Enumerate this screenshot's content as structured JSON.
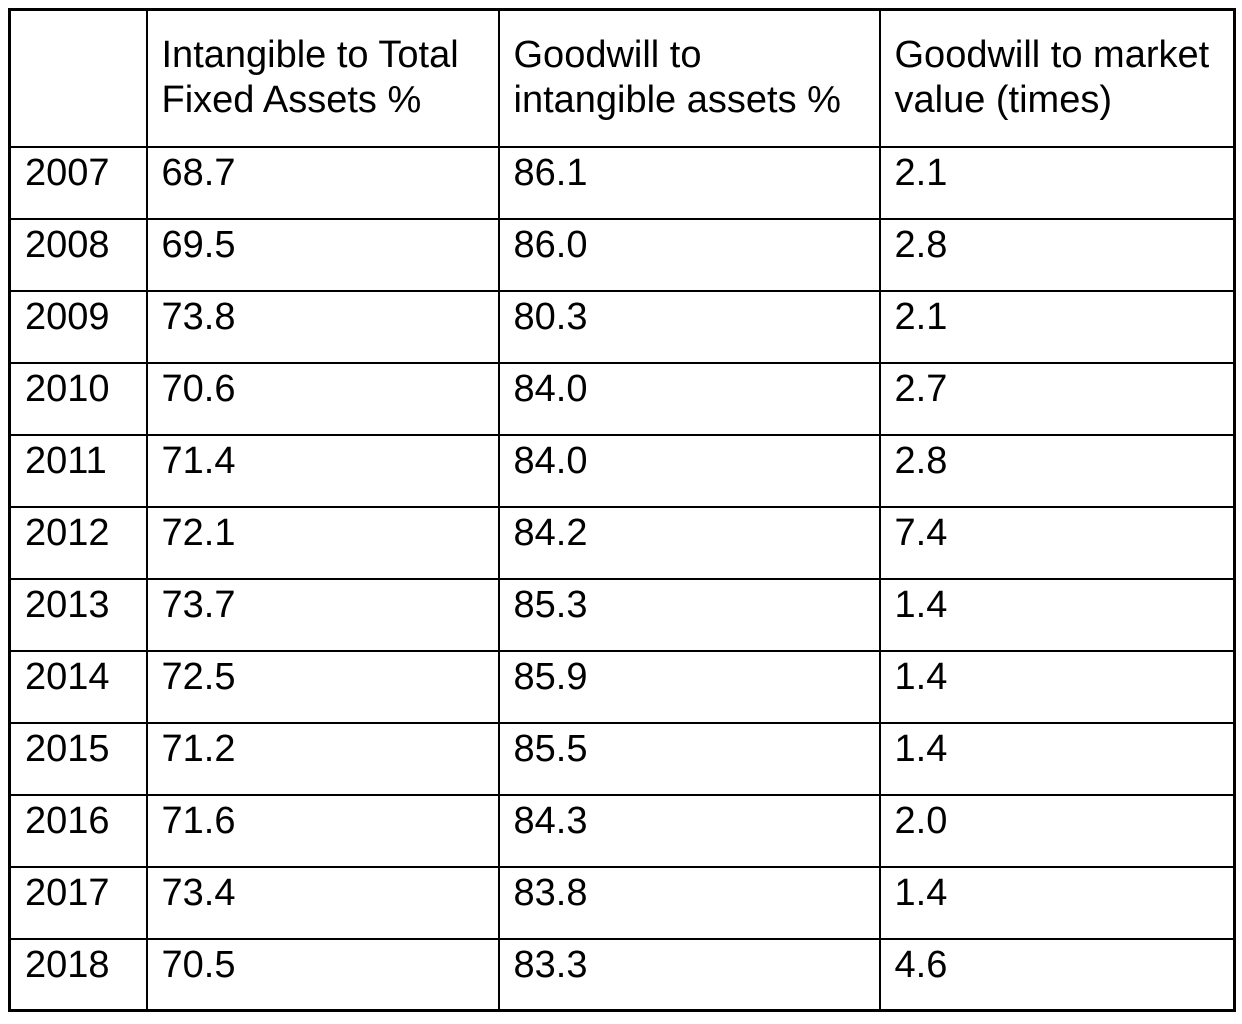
{
  "colors": {
    "background": "#ffffff",
    "border": "#000000",
    "text": "#000000"
  },
  "table": {
    "columns": [
      {
        "lines": [
          ""
        ]
      },
      {
        "lines": [
          "Intangible to Total",
          "Fixed Assets %"
        ]
      },
      {
        "lines": [
          "Goodwill to",
          "intangible assets %"
        ]
      },
      {
        "lines": [
          "Goodwill to market",
          "value (times)"
        ]
      }
    ],
    "rows": [
      {
        "year": "2007",
        "values": [
          "68.7",
          "86.1",
          "2.1"
        ]
      },
      {
        "year": "2008",
        "values": [
          "69.5",
          "86.0",
          "2.8"
        ]
      },
      {
        "year": "2009",
        "values": [
          "73.8",
          "80.3",
          "2.1"
        ]
      },
      {
        "year": "2010",
        "values": [
          "70.6",
          "84.0",
          "2.7"
        ]
      },
      {
        "year": "2011",
        "values": [
          "71.4",
          "84.0",
          "2.8"
        ]
      },
      {
        "year": "2012",
        "values": [
          "72.1",
          "84.2",
          "7.4"
        ]
      },
      {
        "year": "2013",
        "values": [
          "73.7",
          "85.3",
          "1.4"
        ]
      },
      {
        "year": "2014",
        "values": [
          "72.5",
          "85.9",
          "1.4"
        ]
      },
      {
        "year": "2015",
        "values": [
          "71.2",
          "85.5",
          "1.4"
        ]
      },
      {
        "year": "2016",
        "values": [
          "71.6",
          "84.3",
          "2.0"
        ]
      },
      {
        "year": "2017",
        "values": [
          "73.4",
          "83.8",
          "1.4"
        ]
      },
      {
        "year": "2018",
        "values": [
          "70.5",
          "83.3",
          "4.6"
        ]
      }
    ]
  }
}
